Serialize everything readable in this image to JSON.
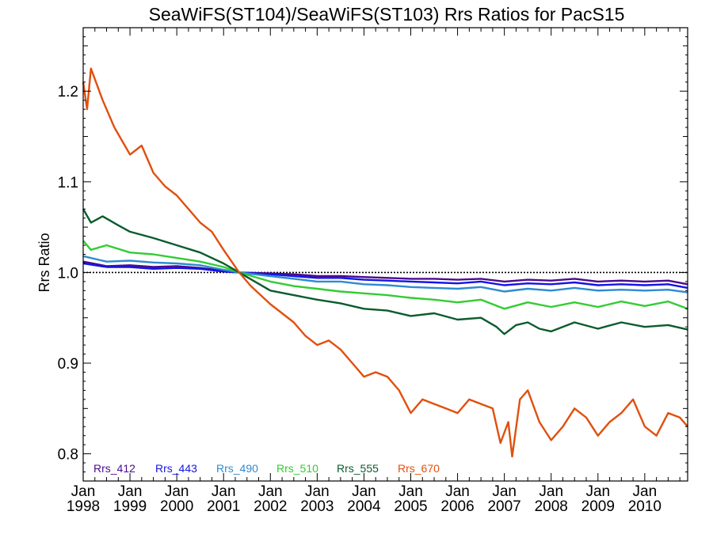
{
  "chart_data": {
    "type": "line",
    "title": "SeaWiFS(ST104)/SeaWiFS(ST103)  Rrs Ratios for PacS15",
    "xlabel": "",
    "ylabel": "Rrs Ratio",
    "xlim": [
      "1998-01",
      "2010-12"
    ],
    "ylim": [
      0.77,
      1.27
    ],
    "y_ticks": [
      {
        "value": 0.8,
        "label": "0.8"
      },
      {
        "value": 0.9,
        "label": "0.9"
      },
      {
        "value": 1.0,
        "label": "1.0"
      },
      {
        "value": 1.1,
        "label": "1.1"
      },
      {
        "value": 1.2,
        "label": "1.2"
      }
    ],
    "x_ticks": [
      {
        "value": "1998-01",
        "month": "Jan",
        "year": "1998"
      },
      {
        "value": "1999-01",
        "month": "Jan",
        "year": "1999"
      },
      {
        "value": "2000-01",
        "month": "Jan",
        "year": "2000"
      },
      {
        "value": "2001-01",
        "month": "Jan",
        "year": "2001"
      },
      {
        "value": "2002-01",
        "month": "Jan",
        "year": "2002"
      },
      {
        "value": "2003-01",
        "month": "Jan",
        "year": "2003"
      },
      {
        "value": "2004-01",
        "month": "Jan",
        "year": "2004"
      },
      {
        "value": "2005-01",
        "month": "Jan",
        "year": "2005"
      },
      {
        "value": "2006-01",
        "month": "Jan",
        "year": "2006"
      },
      {
        "value": "2007-01",
        "month": "Jan",
        "year": "2007"
      },
      {
        "value": "2008-01",
        "month": "Jan",
        "year": "2008"
      },
      {
        "value": "2009-01",
        "month": "Jan",
        "year": "2009"
      },
      {
        "value": "2010-01",
        "month": "Jan",
        "year": "2010"
      }
    ],
    "reference_line": {
      "y": 1.0,
      "style": "dotted"
    },
    "legend_position": "bottom-left",
    "series": [
      {
        "name": "Rrs_412",
        "color": "#4b0a8c",
        "points": [
          [
            "1998-01",
            1.012
          ],
          [
            "1998-07",
            1.007
          ],
          [
            "1999-01",
            1.008
          ],
          [
            "1999-07",
            1.006
          ],
          [
            "2000-01",
            1.007
          ],
          [
            "2000-07",
            1.005
          ],
          [
            "2001-01",
            1.002
          ],
          [
            "2001-05",
            1.0
          ],
          [
            "2002-01",
            0.999
          ],
          [
            "2002-07",
            0.998
          ],
          [
            "2003-01",
            0.996
          ],
          [
            "2003-07",
            0.996
          ],
          [
            "2004-01",
            0.995
          ],
          [
            "2004-07",
            0.994
          ],
          [
            "2005-01",
            0.993
          ],
          [
            "2005-07",
            0.993
          ],
          [
            "2006-01",
            0.992
          ],
          [
            "2006-07",
            0.993
          ],
          [
            "2007-01",
            0.99
          ],
          [
            "2007-07",
            0.992
          ],
          [
            "2008-01",
            0.991
          ],
          [
            "2008-07",
            0.993
          ],
          [
            "2009-01",
            0.99
          ],
          [
            "2009-07",
            0.991
          ],
          [
            "2010-01",
            0.99
          ],
          [
            "2010-07",
            0.991
          ],
          [
            "2010-12",
            0.987
          ]
        ]
      },
      {
        "name": "Rrs_443",
        "color": "#1414e6",
        "points": [
          [
            "1998-01",
            1.01
          ],
          [
            "1998-07",
            1.006
          ],
          [
            "1999-01",
            1.006
          ],
          [
            "1999-07",
            1.004
          ],
          [
            "2000-01",
            1.005
          ],
          [
            "2000-07",
            1.004
          ],
          [
            "2001-01",
            1.001
          ],
          [
            "2001-05",
            1.0
          ],
          [
            "2002-01",
            0.998
          ],
          [
            "2002-07",
            0.996
          ],
          [
            "2003-01",
            0.994
          ],
          [
            "2003-07",
            0.994
          ],
          [
            "2004-01",
            0.992
          ],
          [
            "2004-07",
            0.991
          ],
          [
            "2005-01",
            0.99
          ],
          [
            "2005-07",
            0.989
          ],
          [
            "2006-01",
            0.988
          ],
          [
            "2006-07",
            0.99
          ],
          [
            "2007-01",
            0.986
          ],
          [
            "2007-07",
            0.988
          ],
          [
            "2008-01",
            0.987
          ],
          [
            "2008-07",
            0.989
          ],
          [
            "2009-01",
            0.986
          ],
          [
            "2009-07",
            0.987
          ],
          [
            "2010-01",
            0.986
          ],
          [
            "2010-07",
            0.987
          ],
          [
            "2010-12",
            0.983
          ]
        ]
      },
      {
        "name": "Rrs_490",
        "color": "#2e8bd0",
        "points": [
          [
            "1998-01",
            1.018
          ],
          [
            "1998-07",
            1.012
          ],
          [
            "1999-01",
            1.013
          ],
          [
            "1999-07",
            1.011
          ],
          [
            "2000-01",
            1.01
          ],
          [
            "2000-07",
            1.008
          ],
          [
            "2001-01",
            1.003
          ],
          [
            "2001-05",
            1.0
          ],
          [
            "2002-01",
            0.996
          ],
          [
            "2002-07",
            0.993
          ],
          [
            "2003-01",
            0.99
          ],
          [
            "2003-07",
            0.99
          ],
          [
            "2004-01",
            0.987
          ],
          [
            "2004-07",
            0.986
          ],
          [
            "2005-01",
            0.984
          ],
          [
            "2005-07",
            0.983
          ],
          [
            "2006-01",
            0.982
          ],
          [
            "2006-07",
            0.984
          ],
          [
            "2007-01",
            0.979
          ],
          [
            "2007-07",
            0.982
          ],
          [
            "2008-01",
            0.98
          ],
          [
            "2008-07",
            0.983
          ],
          [
            "2009-01",
            0.98
          ],
          [
            "2009-07",
            0.981
          ],
          [
            "2010-01",
            0.98
          ],
          [
            "2010-07",
            0.981
          ],
          [
            "2010-12",
            0.978
          ]
        ]
      },
      {
        "name": "Rrs_510",
        "color": "#33cc33",
        "points": [
          [
            "1998-01",
            1.035
          ],
          [
            "1998-03",
            1.025
          ],
          [
            "1998-07",
            1.03
          ],
          [
            "1999-01",
            1.022
          ],
          [
            "1999-07",
            1.02
          ],
          [
            "2000-01",
            1.016
          ],
          [
            "2000-07",
            1.012
          ],
          [
            "2001-01",
            1.006
          ],
          [
            "2001-05",
            1.0
          ],
          [
            "2002-01",
            0.99
          ],
          [
            "2002-07",
            0.985
          ],
          [
            "2003-01",
            0.982
          ],
          [
            "2003-07",
            0.979
          ],
          [
            "2004-01",
            0.977
          ],
          [
            "2004-07",
            0.975
          ],
          [
            "2005-01",
            0.972
          ],
          [
            "2005-07",
            0.97
          ],
          [
            "2006-01",
            0.967
          ],
          [
            "2006-07",
            0.97
          ],
          [
            "2007-01",
            0.96
          ],
          [
            "2007-07",
            0.967
          ],
          [
            "2008-01",
            0.962
          ],
          [
            "2008-07",
            0.967
          ],
          [
            "2009-01",
            0.962
          ],
          [
            "2009-07",
            0.968
          ],
          [
            "2010-01",
            0.963
          ],
          [
            "2010-07",
            0.968
          ],
          [
            "2010-12",
            0.96
          ]
        ]
      },
      {
        "name": "Rrs_555",
        "color": "#0a5c2d",
        "points": [
          [
            "1998-01",
            1.07
          ],
          [
            "1998-03",
            1.055
          ],
          [
            "1998-06",
            1.062
          ],
          [
            "1998-10",
            1.052
          ],
          [
            "1999-01",
            1.045
          ],
          [
            "1999-07",
            1.038
          ],
          [
            "2000-01",
            1.03
          ],
          [
            "2000-07",
            1.022
          ],
          [
            "2001-01",
            1.01
          ],
          [
            "2001-05",
            1.0
          ],
          [
            "2002-01",
            0.98
          ],
          [
            "2002-07",
            0.975
          ],
          [
            "2003-01",
            0.97
          ],
          [
            "2003-07",
            0.966
          ],
          [
            "2004-01",
            0.96
          ],
          [
            "2004-07",
            0.958
          ],
          [
            "2005-01",
            0.952
          ],
          [
            "2005-07",
            0.955
          ],
          [
            "2006-01",
            0.948
          ],
          [
            "2006-07",
            0.95
          ],
          [
            "2006-11",
            0.94
          ],
          [
            "2007-01",
            0.932
          ],
          [
            "2007-04",
            0.942
          ],
          [
            "2007-07",
            0.945
          ],
          [
            "2007-10",
            0.938
          ],
          [
            "2008-01",
            0.935
          ],
          [
            "2008-07",
            0.945
          ],
          [
            "2009-01",
            0.938
          ],
          [
            "2009-07",
            0.945
          ],
          [
            "2010-01",
            0.94
          ],
          [
            "2010-07",
            0.942
          ],
          [
            "2010-12",
            0.937
          ]
        ]
      },
      {
        "name": "Rrs_670",
        "color": "#e0500e",
        "points": [
          [
            "1998-01",
            1.21
          ],
          [
            "1998-02",
            1.18
          ],
          [
            "1998-03",
            1.225
          ],
          [
            "1998-06",
            1.19
          ],
          [
            "1998-09",
            1.16
          ],
          [
            "1999-01",
            1.13
          ],
          [
            "1999-04",
            1.14
          ],
          [
            "1999-07",
            1.11
          ],
          [
            "1999-10",
            1.095
          ],
          [
            "2000-01",
            1.085
          ],
          [
            "2000-04",
            1.07
          ],
          [
            "2000-07",
            1.055
          ],
          [
            "2000-10",
            1.045
          ],
          [
            "2001-01",
            1.025
          ],
          [
            "2001-05",
            1.0
          ],
          [
            "2001-08",
            0.985
          ],
          [
            "2002-01",
            0.965
          ],
          [
            "2002-04",
            0.955
          ],
          [
            "2002-07",
            0.945
          ],
          [
            "2002-10",
            0.93
          ],
          [
            "2003-01",
            0.92
          ],
          [
            "2003-04",
            0.925
          ],
          [
            "2003-07",
            0.915
          ],
          [
            "2003-10",
            0.9
          ],
          [
            "2004-01",
            0.885
          ],
          [
            "2004-04",
            0.89
          ],
          [
            "2004-07",
            0.885
          ],
          [
            "2004-10",
            0.87
          ],
          [
            "2005-01",
            0.845
          ],
          [
            "2005-04",
            0.86
          ],
          [
            "2005-07",
            0.855
          ],
          [
            "2005-10",
            0.85
          ],
          [
            "2006-01",
            0.845
          ],
          [
            "2006-04",
            0.86
          ],
          [
            "2006-07",
            0.855
          ],
          [
            "2006-10",
            0.85
          ],
          [
            "2006-12",
            0.812
          ],
          [
            "2007-02",
            0.835
          ],
          [
            "2007-03",
            0.797
          ],
          [
            "2007-05",
            0.86
          ],
          [
            "2007-07",
            0.87
          ],
          [
            "2007-10",
            0.835
          ],
          [
            "2008-01",
            0.815
          ],
          [
            "2008-04",
            0.83
          ],
          [
            "2008-07",
            0.85
          ],
          [
            "2008-10",
            0.84
          ],
          [
            "2009-01",
            0.82
          ],
          [
            "2009-04",
            0.835
          ],
          [
            "2009-07",
            0.845
          ],
          [
            "2009-10",
            0.86
          ],
          [
            "2010-01",
            0.83
          ],
          [
            "2010-04",
            0.82
          ],
          [
            "2010-07",
            0.845
          ],
          [
            "2010-10",
            0.84
          ],
          [
            "2010-12",
            0.83
          ]
        ]
      }
    ]
  }
}
